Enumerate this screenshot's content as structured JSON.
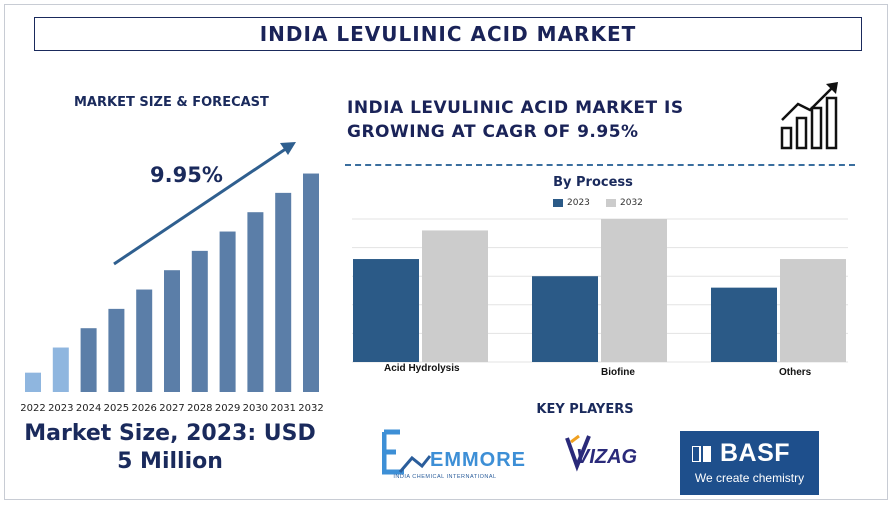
{
  "title": "INDIA LEVULINIC ACID MARKET",
  "left_panel": {
    "heading": "MARKET SIZE & FORECAST",
    "cagr_label": "9.95%",
    "market_size_text": "Market Size, 2023: USD 5 Million"
  },
  "right_panel": {
    "cagr_heading_line1": "INDIA LEVULINIC ACID MARKET IS",
    "cagr_heading_line2": "GROWING AT CAGR OF 9.95%",
    "icon": "growth-chart-icon"
  },
  "key_players": {
    "heading": "KEY PLAYERS",
    "logos": [
      {
        "name": "EMMORE",
        "subtitle": "INDIA CHEMICAL INTERNATIONAL",
        "icon": "emmore-logo"
      },
      {
        "name": "VIZAG",
        "icon": "vizag-logo"
      },
      {
        "name": "BASF",
        "tagline": "We create chemistry",
        "icon": "basf-logo"
      }
    ]
  },
  "colors": {
    "navy": "#1a2a5c",
    "bar_dark": "#5b7ea8",
    "bar_light": "#8fb6df",
    "series_2023": "#2b5a87",
    "series_2032": "#cccccc",
    "basf_blue": "#1e4f8c"
  },
  "chart_data": [
    {
      "type": "bar",
      "title": "",
      "categories": [
        "2022",
        "2023",
        "2024",
        "2025",
        "2026",
        "2027",
        "2028",
        "2029",
        "2030",
        "2031",
        "2032"
      ],
      "values": [
        1.0,
        2.3,
        3.3,
        4.3,
        5.3,
        6.3,
        7.3,
        8.3,
        9.3,
        10.3,
        11.3
      ],
      "highlight": [
        "2022",
        "2023"
      ],
      "annotation": "9.95%",
      "ylim": [
        0,
        12
      ]
    },
    {
      "type": "bar",
      "title": "By Process",
      "categories": [
        "Acid Hydrolysis",
        "Biofine",
        "Others"
      ],
      "series": [
        {
          "name": "2023",
          "values": [
            3.6,
            3.0,
            2.6
          ]
        },
        {
          "name": "2032",
          "values": [
            4.6,
            5.0,
            3.6
          ]
        }
      ],
      "ylim": [
        0,
        5
      ],
      "grid": true
    }
  ]
}
